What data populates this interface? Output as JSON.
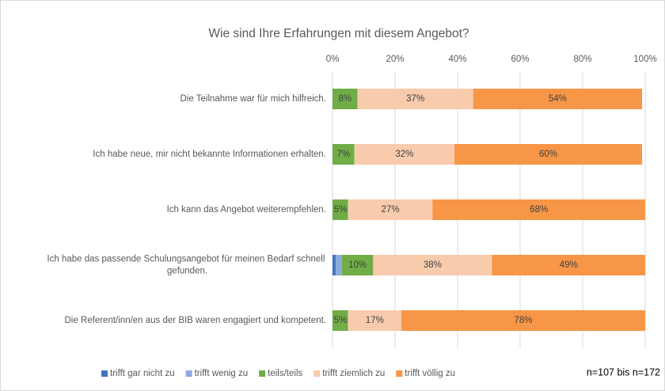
{
  "chart_data": {
    "type": "stacked-barh",
    "title": "Wie sind Ihre Erfahrungen mit diesem Angebot?",
    "categories": [
      "Die Teilnahme war für mich hilfreich.",
      "Ich habe neue, mir nicht bekannte Informationen erhalten.",
      "Ich kann das Angebot weiterempfehlen.",
      "Ich habe das passende Schulungsangebot für meinen Bedarf schnell gefunden.",
      "Die Referent/inn/en aus der BIB waren engagiert und kompetent."
    ],
    "series": [
      {
        "name": "trifft gar nicht zu",
        "color": "#4472c4",
        "values": [
          0,
          0,
          0,
          1,
          0
        ],
        "value_labels": [
          null,
          null,
          null,
          null,
          null
        ]
      },
      {
        "name": "trifft wenig zu",
        "color": "#8faadc",
        "values": [
          0,
          0,
          0,
          2,
          0
        ],
        "value_labels": [
          null,
          null,
          null,
          null,
          null
        ]
      },
      {
        "name": "teils/teils",
        "color": "#70ad47",
        "values": [
          8,
          7,
          5,
          10,
          5
        ],
        "value_labels": [
          "8%",
          "7%",
          "5%",
          "10%",
          "5%"
        ]
      },
      {
        "name": "trifft ziemlich zu",
        "color": "#f8cbad",
        "values": [
          37,
          32,
          27,
          38,
          17
        ],
        "value_labels": [
          "37%",
          "32%",
          "27%",
          "38%",
          "17%"
        ]
      },
      {
        "name": "trifft völlig zu",
        "color": "#f79646",
        "values": [
          54,
          60,
          68,
          49,
          78
        ],
        "value_labels": [
          "54%",
          "60%",
          "68%",
          "49%",
          "78%"
        ]
      }
    ],
    "xlim": [
      0,
      100
    ],
    "xticks": [
      {
        "value": 0,
        "label": "0%"
      },
      {
        "value": 20,
        "label": "20%"
      },
      {
        "value": 40,
        "label": "40%"
      },
      {
        "value": 60,
        "label": "60%"
      },
      {
        "value": 80,
        "label": "80%"
      },
      {
        "value": 100,
        "label": "100%"
      }
    ],
    "grid": true,
    "annotation": "n=107 bis n=172"
  }
}
